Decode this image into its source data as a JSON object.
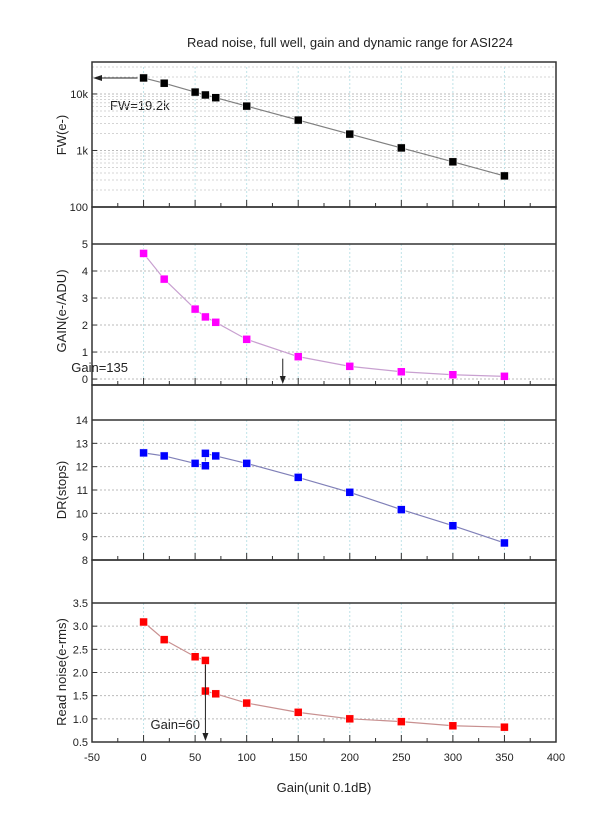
{
  "chart_data": [
    {
      "type": "line",
      "title": "Read noise, full well, gain and dynamic range for ASI224",
      "xlabel": "Gain(unit 0.1dB)",
      "ylabel": "FW(e-)",
      "yscale": "log",
      "ylim": [
        100,
        30000
      ],
      "xlim": [
        -50,
        400
      ],
      "grid": true,
      "color": "#000000",
      "line_color": "#808080",
      "y_tick_labels": [
        "100",
        "1k",
        "10k"
      ],
      "y_ticks": [
        100,
        1000,
        10000
      ],
      "x": [
        0,
        20,
        50,
        60,
        70,
        100,
        150,
        200,
        250,
        300,
        350
      ],
      "y": [
        19200,
        15500,
        10800,
        9600,
        8600,
        6100,
        3450,
        1950,
        1110,
        630,
        355
      ],
      "annotation": {
        "text": "FW=19.2k",
        "arrow_at_y": 19200
      }
    },
    {
      "type": "line",
      "ylabel": "GAIN(e-/ADU)",
      "ylim": [
        -0.22,
        5
      ],
      "xlim": [
        -50,
        400
      ],
      "grid": true,
      "color": "#ff00ff",
      "line_color": "#c8a0d0",
      "y_ticks": [
        0,
        1,
        2,
        3,
        4,
        5
      ],
      "x": [
        0,
        20,
        50,
        60,
        70,
        100,
        150,
        200,
        250,
        300,
        350
      ],
      "y": [
        4.65,
        3.7,
        2.59,
        2.3,
        2.1,
        1.47,
        0.83,
        0.47,
        0.27,
        0.16,
        0.1
      ],
      "annotation": {
        "text": "Gain=135",
        "arrow_x": 135
      }
    },
    {
      "type": "line",
      "ylabel": "DR(stops)",
      "ylim": [
        8,
        14
      ],
      "xlim": [
        -50,
        400
      ],
      "grid": true,
      "color": "#0000ff",
      "line_color": "#8080b8",
      "y_ticks": [
        8,
        9,
        10,
        11,
        12,
        13,
        14
      ],
      "x": [
        0,
        20,
        50,
        60,
        60,
        70,
        100,
        150,
        200,
        250,
        300,
        350
      ],
      "y": [
        12.59,
        12.46,
        12.14,
        12.04,
        12.57,
        12.46,
        12.14,
        11.54,
        10.9,
        10.16,
        9.47,
        8.73
      ]
    },
    {
      "type": "line",
      "ylabel": "Read noise(e-rms)",
      "ylim": [
        0.5,
        3.5
      ],
      "xlim": [
        -50,
        400
      ],
      "grid": true,
      "color": "#ff0000",
      "line_color": "#c89090",
      "y_ticks": [
        0.5,
        1.0,
        1.5,
        2.0,
        2.5,
        3.0,
        3.5
      ],
      "x": [
        0,
        20,
        50,
        60,
        60,
        70,
        100,
        150,
        200,
        250,
        300,
        350
      ],
      "y": [
        3.09,
        2.71,
        2.34,
        2.26,
        1.6,
        1.54,
        1.34,
        1.14,
        1.0,
        0.94,
        0.85,
        0.82
      ],
      "annotation": {
        "text": "Gain=60",
        "arrow_x": 60
      }
    }
  ],
  "x_tick_labels": [
    "-50",
    "0",
    "50",
    "100",
    "150",
    "200",
    "250",
    "300",
    "350",
    "400"
  ]
}
